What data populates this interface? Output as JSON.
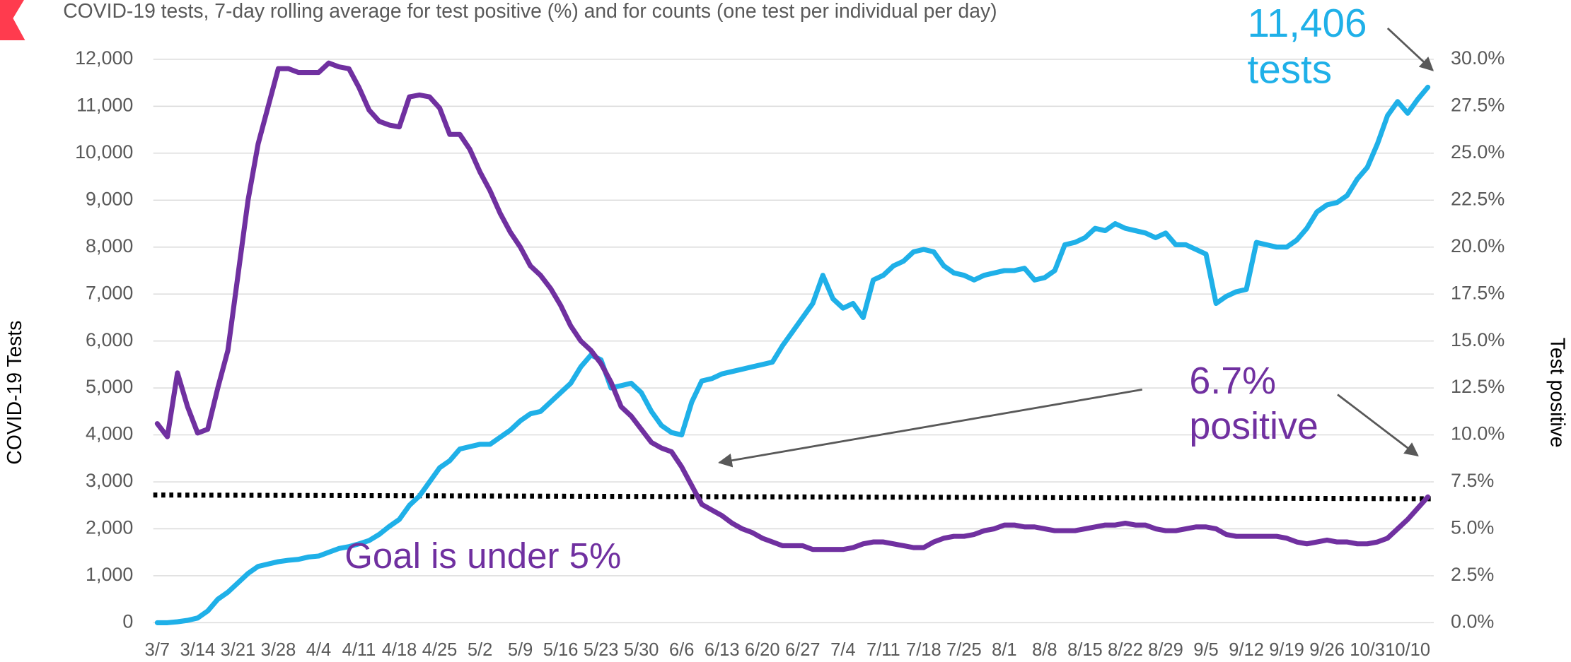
{
  "chart_data": {
    "type": "line",
    "title": "COVID-19 tests, 7-day rolling average for test positive (%) and for counts (one test per individual per day)",
    "ylabel": "COVID-19 Tests",
    "y2label": "Test positive",
    "categories": [
      "3/7",
      null,
      null,
      null,
      "3/14",
      null,
      null,
      null,
      "3/21",
      null,
      null,
      null,
      "3/28",
      null,
      null,
      null,
      "4/4",
      null,
      null,
      null,
      "4/11",
      null,
      null,
      null,
      "4/18",
      null,
      null,
      null,
      "4/25",
      null,
      null,
      null,
      "5/2",
      null,
      null,
      null,
      "5/9",
      null,
      null,
      null,
      "5/16",
      null,
      null,
      null,
      "5/23",
      null,
      null,
      null,
      "5/30",
      null,
      null,
      null,
      "6/6",
      null,
      null,
      null,
      "6/13",
      null,
      null,
      null,
      "6/20",
      null,
      null,
      null,
      "6/27",
      null,
      null,
      null,
      "7/4",
      null,
      null,
      null,
      "7/11",
      null,
      null,
      null,
      "7/18",
      null,
      null,
      null,
      "7/25",
      null,
      null,
      null,
      "8/1",
      null,
      null,
      null,
      "8/8",
      null,
      null,
      null,
      "8/15",
      null,
      null,
      null,
      "8/22",
      null,
      null,
      null,
      "8/29",
      null,
      null,
      null,
      "9/5",
      null,
      null,
      null,
      "9/12",
      null,
      null,
      null,
      "9/19",
      null,
      null,
      null,
      "9/26",
      null,
      null,
      null,
      "10/3",
      null,
      null,
      null,
      "10/10",
      null,
      null
    ],
    "series": [
      {
        "color": "#1fb0e8",
        "axis": "y",
        "values": [
          0,
          0,
          20,
          50,
          100,
          250,
          500,
          650,
          850,
          1050,
          1200,
          1250,
          1300,
          1330,
          1350,
          1400,
          1420,
          1500,
          1580,
          1620,
          1680,
          1750,
          1880,
          2050,
          2200,
          2500,
          2700,
          3000,
          3300,
          3450,
          3700,
          3750,
          3800,
          3800,
          3950,
          4100,
          4300,
          4450,
          4500,
          4700,
          4900,
          5100,
          5450,
          5700,
          5600,
          5000,
          5050,
          5100,
          4900,
          4500,
          4200,
          4050,
          4000,
          4700,
          5150,
          5200,
          5300,
          5350,
          5400,
          5450,
          5500,
          5550,
          5900,
          6200,
          6500,
          6800,
          7400,
          6900,
          6700,
          6800,
          6500,
          7300,
          7400,
          7600,
          7700,
          7900,
          7950,
          7900,
          7600,
          7450,
          7400,
          7300,
          7400,
          7450,
          7500,
          7500,
          7550,
          7300,
          7350,
          7500,
          8050,
          8100,
          8200,
          8400,
          8350,
          8500,
          8400,
          8350,
          8300,
          8200,
          8300,
          8050,
          8050,
          7950,
          7850,
          6800,
          6950,
          7050,
          7100,
          8100,
          8050,
          8000,
          8000,
          8150,
          8400,
          8750,
          8900,
          8950,
          9100,
          9450,
          9700,
          10200,
          10800,
          11100,
          10850,
          11150,
          11406
        ]
      },
      {
        "color": "#7030a0",
        "axis": "y2",
        "values": [
          10.6,
          9.9,
          13.3,
          11.5,
          10.1,
          10.3,
          12.5,
          14.5,
          18.5,
          22.5,
          25.5,
          27.5,
          29.5,
          29.5,
          29.3,
          29.3,
          29.3,
          29.8,
          29.6,
          29.5,
          28.5,
          27.3,
          26.7,
          26.5,
          26.4,
          28,
          28.1,
          28,
          27.4,
          26,
          26,
          25.2,
          24,
          23,
          21.8,
          20.8,
          20,
          19,
          18.5,
          17.8,
          16.9,
          15.8,
          15,
          14.5,
          13.8,
          12.8,
          11.5,
          11,
          10.3,
          9.6,
          9.3,
          9.1,
          8.3,
          7.3,
          6.3,
          6,
          5.7,
          5.3,
          5,
          4.8,
          4.5,
          4.3,
          4.1,
          4.1,
          4.1,
          3.9,
          3.9,
          3.9,
          3.9,
          4.0,
          4.2,
          4.3,
          4.3,
          4.2,
          4.1,
          4.0,
          4.0,
          4.3,
          4.5,
          4.6,
          4.6,
          4.7,
          4.9,
          5.0,
          5.2,
          5.2,
          5.1,
          5.1,
          5.0,
          4.9,
          4.9,
          4.9,
          5.0,
          5.1,
          5.2,
          5.2,
          5.3,
          5.2,
          5.2,
          5.0,
          4.9,
          4.9,
          5.0,
          5.1,
          5.1,
          5.0,
          4.7,
          4.6,
          4.6,
          4.6,
          4.6,
          4.6,
          4.5,
          4.3,
          4.2,
          4.3,
          4.4,
          4.3,
          4.3,
          4.2,
          4.2,
          4.3,
          4.5,
          5.0,
          5.5,
          6.1,
          6.7
        ]
      }
    ],
    "trend_line": {
      "axis": "y2",
      "start": 6.8,
      "end": 6.6,
      "color": "#000000"
    },
    "ylim": [
      0,
      12000
    ],
    "yticks": [
      0,
      {
        "value": 1000,
        "label": "1,000"
      },
      {
        "value": 2000,
        "label": "2,000"
      },
      {
        "value": 3000,
        "label": "3,000"
      },
      {
        "value": 4000,
        "label": "4,000"
      },
      {
        "value": 5000,
        "label": "5,000"
      },
      {
        "value": 6000,
        "label": "6,000"
      },
      {
        "value": 7000,
        "label": "7,000"
      },
      {
        "value": 8000,
        "label": "8,000"
      },
      {
        "value": 9000,
        "label": "9,000"
      },
      {
        "value": 10000,
        "label": "10,000"
      },
      {
        "value": 11000,
        "label": "11,000"
      },
      {
        "value": 12000,
        "label": "12,000"
      }
    ],
    "y2lim": [
      0,
      30
    ],
    "y2ticks": [
      {
        "value": 0,
        "label": "0.0%"
      },
      {
        "value": 2.5,
        "label": "2.5%"
      },
      {
        "value": 5,
        "label": "5.0%"
      },
      {
        "value": 7.5,
        "label": "7.5%"
      },
      {
        "value": 10,
        "label": "10.0%"
      },
      {
        "value": 12.5,
        "label": "12.5%"
      },
      {
        "value": 15,
        "label": "15.0%"
      },
      {
        "value": 17.5,
        "label": "17.5%"
      },
      {
        "value": 20,
        "label": "20.0%"
      },
      {
        "value": 22.5,
        "label": "22.5%"
      },
      {
        "value": 25,
        "label": "25.0%"
      },
      {
        "value": 27.5,
        "label": "27.5%"
      },
      {
        "value": 30,
        "label": "30.0%"
      }
    ],
    "grid": true,
    "annotations": [
      {
        "lines": [
          "11,406",
          "tests"
        ],
        "color": "#1fb0e8"
      },
      {
        "lines": [
          "6.7%",
          "positive"
        ],
        "color": "#7030a0"
      },
      {
        "lines": [
          "Goal is under 5%"
        ],
        "color": "#7030a0"
      }
    ]
  }
}
